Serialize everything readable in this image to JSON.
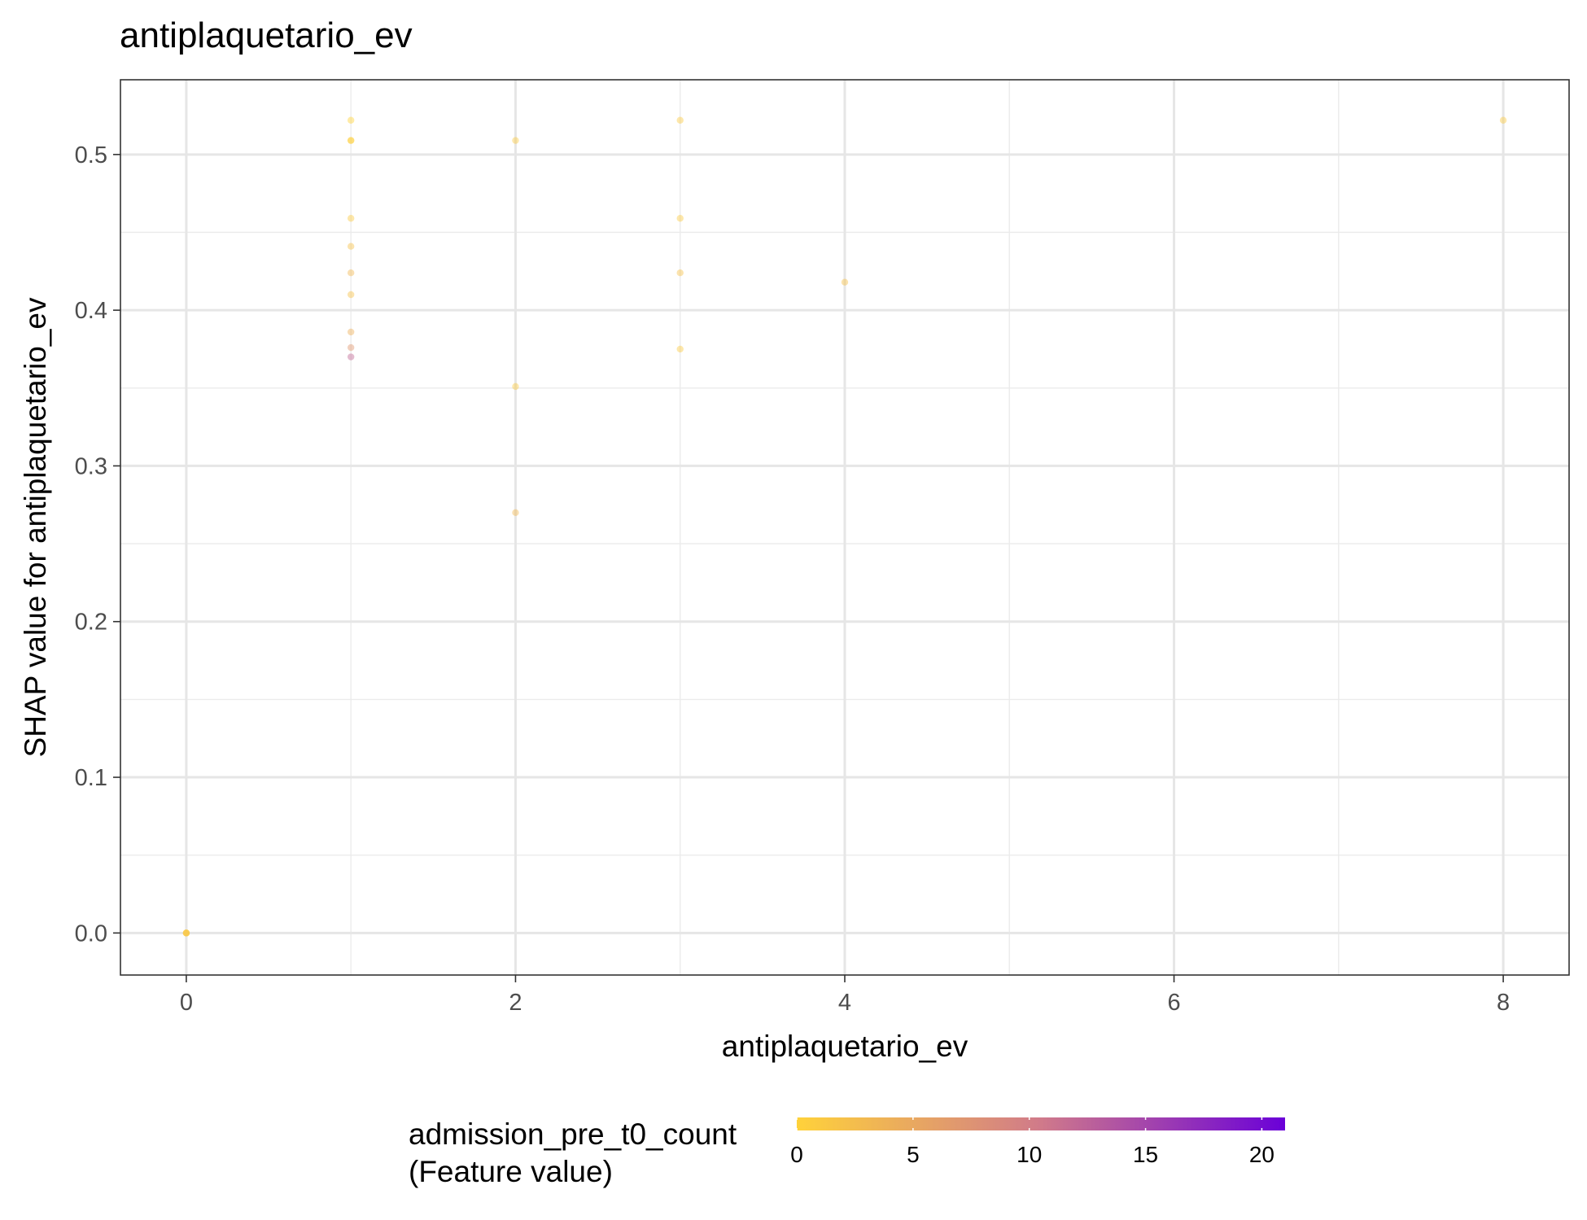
{
  "chart_data": {
    "type": "scatter",
    "title": "antiplaquetario_ev",
    "xlabel": "antiplaquetario_ev",
    "ylabel": "SHAP value for antiplaquetario_ev",
    "xlim": [
      -0.4,
      8.4
    ],
    "ylim": [
      -0.027,
      0.548
    ],
    "x_ticks": [
      0,
      2,
      4,
      6,
      8
    ],
    "x_tick_labels": [
      "0",
      "2",
      "4",
      "6",
      "8"
    ],
    "y_ticks": [
      0.0,
      0.1,
      0.2,
      0.3,
      0.4,
      0.5
    ],
    "y_tick_labels": [
      "0.0",
      "0.1",
      "0.2",
      "0.3",
      "0.4",
      "0.5"
    ],
    "grid": true,
    "legend_position": "bottom",
    "colorbar": {
      "title_line1": "admission_pre_t0_count",
      "title_line2": "(Feature value)",
      "min": 0,
      "max": 21,
      "ticks": [
        0,
        5,
        10,
        15,
        20
      ],
      "tick_labels": [
        "0",
        "5",
        "10",
        "15",
        "20"
      ],
      "color_low": "#ffd23a",
      "color_mid": "#d07a8a",
      "color_high": "#6a00d8"
    },
    "points": [
      {
        "x": 0,
        "y": 0.0,
        "c": 1
      },
      {
        "x": 0,
        "y": 0.0,
        "c": 1
      },
      {
        "x": 0,
        "y": 0.0,
        "c": 0
      },
      {
        "x": 0,
        "y": 0.0,
        "c": 2
      },
      {
        "x": 1,
        "y": 0.522,
        "c": 0
      },
      {
        "x": 1,
        "y": 0.509,
        "c": 1
      },
      {
        "x": 1,
        "y": 0.509,
        "c": 0
      },
      {
        "x": 1,
        "y": 0.459,
        "c": 1
      },
      {
        "x": 1,
        "y": 0.441,
        "c": 2
      },
      {
        "x": 1,
        "y": 0.424,
        "c": 3
      },
      {
        "x": 1,
        "y": 0.41,
        "c": 2
      },
      {
        "x": 1,
        "y": 0.386,
        "c": 4
      },
      {
        "x": 1,
        "y": 0.376,
        "c": 7
      },
      {
        "x": 1,
        "y": 0.37,
        "c": 12
      },
      {
        "x": 2,
        "y": 0.509,
        "c": 1
      },
      {
        "x": 2,
        "y": 0.351,
        "c": 1
      },
      {
        "x": 2,
        "y": 0.27,
        "c": 3
      },
      {
        "x": 3,
        "y": 0.522,
        "c": 1
      },
      {
        "x": 3,
        "y": 0.459,
        "c": 1
      },
      {
        "x": 3,
        "y": 0.424,
        "c": 2
      },
      {
        "x": 3,
        "y": 0.375,
        "c": 1
      },
      {
        "x": 4,
        "y": 0.418,
        "c": 2
      },
      {
        "x": 8,
        "y": 0.522,
        "c": 1
      }
    ]
  }
}
